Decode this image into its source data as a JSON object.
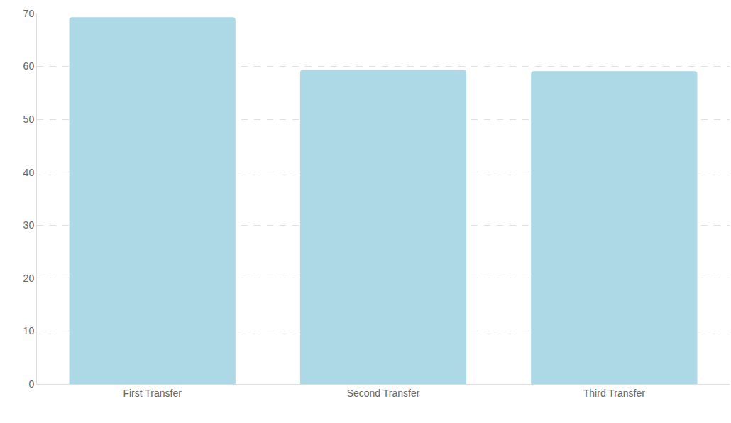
{
  "chart_data": {
    "type": "bar",
    "categories": [
      "First Transfer",
      "Second Transfer",
      "Third Transfer"
    ],
    "values": [
      69.3,
      59.3,
      59.1
    ],
    "color": "#add8e6",
    "ylim": [
      0,
      70
    ],
    "yticks": [
      0,
      10,
      20,
      30,
      40,
      50,
      60,
      70
    ],
    "grid": true
  }
}
